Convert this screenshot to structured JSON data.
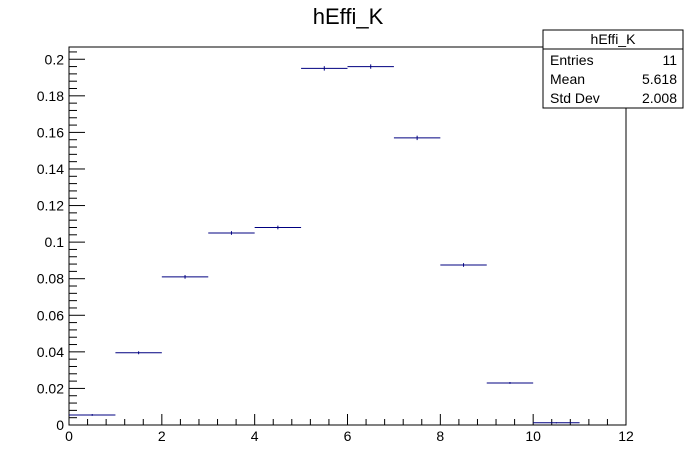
{
  "chart_data": {
    "type": "histogram",
    "title": "hEffi_K",
    "xlabel": "",
    "ylabel": "",
    "xlim": [
      0,
      12
    ],
    "ylim": [
      0,
      0.2067
    ],
    "x_ticks": [
      0,
      2,
      4,
      6,
      8,
      10,
      12
    ],
    "x_tick_labels": [
      "0",
      "2",
      "4",
      "6",
      "8",
      "10",
      "12"
    ],
    "y_ticks": [
      0,
      0.02,
      0.04,
      0.06,
      0.08,
      0.1,
      0.12,
      0.14,
      0.16,
      0.18,
      0.2
    ],
    "y_tick_labels": [
      "0",
      "0.02",
      "0.04",
      "0.06",
      "0.08",
      "0.1",
      "0.12",
      "0.14",
      "0.16",
      "0.18",
      "0.2"
    ],
    "line_color": "#000080",
    "bins": [
      {
        "x_low": 0,
        "x_high": 1,
        "value": 0.0055,
        "error": 0.0005
      },
      {
        "x_low": 1,
        "x_high": 2,
        "value": 0.0395,
        "error": 0.0008
      },
      {
        "x_low": 2,
        "x_high": 3,
        "value": 0.081,
        "error": 0.001
      },
      {
        "x_low": 3,
        "x_high": 4,
        "value": 0.105,
        "error": 0.001
      },
      {
        "x_low": 4,
        "x_high": 5,
        "value": 0.108,
        "error": 0.001
      },
      {
        "x_low": 5,
        "x_high": 6,
        "value": 0.195,
        "error": 0.0012
      },
      {
        "x_low": 6,
        "x_high": 7,
        "value": 0.196,
        "error": 0.0012
      },
      {
        "x_low": 7,
        "x_high": 8,
        "value": 0.157,
        "error": 0.0012
      },
      {
        "x_low": 8,
        "x_high": 9,
        "value": 0.0875,
        "error": 0.001
      },
      {
        "x_low": 9,
        "x_high": 10,
        "value": 0.023,
        "error": 0.0005
      },
      {
        "x_low": 10,
        "x_high": 11,
        "value": 0.0012,
        "error": 0.0003
      }
    ],
    "stats_box": {
      "name": "hEffi_K",
      "rows": [
        {
          "label": "Entries",
          "value": "11"
        },
        {
          "label": "Mean",
          "value": "5.618"
        },
        {
          "label": "Std Dev",
          "value": "2.008"
        }
      ]
    }
  }
}
